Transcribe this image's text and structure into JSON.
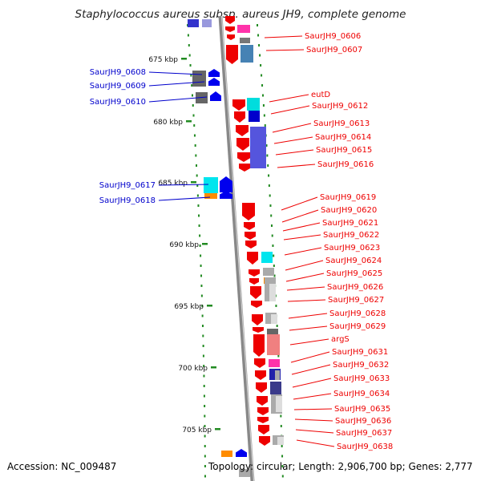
{
  "title": "Staphylococcus aureus subsp. aureus JH9, complete genome",
  "footer": {
    "accession_label": "Accession:",
    "accession": "NC_009487",
    "topology_label": "Topology:",
    "topology": "circular",
    "length_label": "Length:",
    "length": "2,906,700 bp",
    "genes_label": "Genes:",
    "genes": "2,777"
  },
  "scale": {
    "ticks": [
      "675 kbp",
      "680 kbp",
      "685 kbp",
      "690 kbp",
      "695 kbp",
      "700 kbp",
      "705 kbp"
    ]
  },
  "colors": {
    "forward_label": "#0000cc",
    "reverse_label": "#ee0000",
    "tick_mark": "#228b22",
    "backbone": "#888888"
  },
  "forward_labels": [
    "SaurJH9_0608",
    "SaurJH9_0609",
    "SaurJH9_0610",
    "SaurJH9_0617",
    "SaurJH9_0618"
  ],
  "reverse_labels": [
    "SaurJH9_0606",
    "SaurJH9_0607",
    "eutD",
    "SaurJH9_0612",
    "SaurJH9_0613",
    "SaurJH9_0614",
    "SaurJH9_0615",
    "SaurJH9_0616",
    "SaurJH9_0619",
    "SaurJH9_0620",
    "SaurJH9_0621",
    "SaurJH9_0622",
    "SaurJH9_0623",
    "SaurJH9_0624",
    "SaurJH9_0625",
    "SaurJH9_0626",
    "SaurJH9_0627",
    "SaurJH9_0628",
    "SaurJH9_0629",
    "argS",
    "SaurJH9_0631",
    "SaurJH9_0632",
    "SaurJH9_0633",
    "SaurJH9_0634",
    "SaurJH9_0635",
    "SaurJH9_0636",
    "SaurJH9_0637",
    "SaurJH9_0638"
  ]
}
